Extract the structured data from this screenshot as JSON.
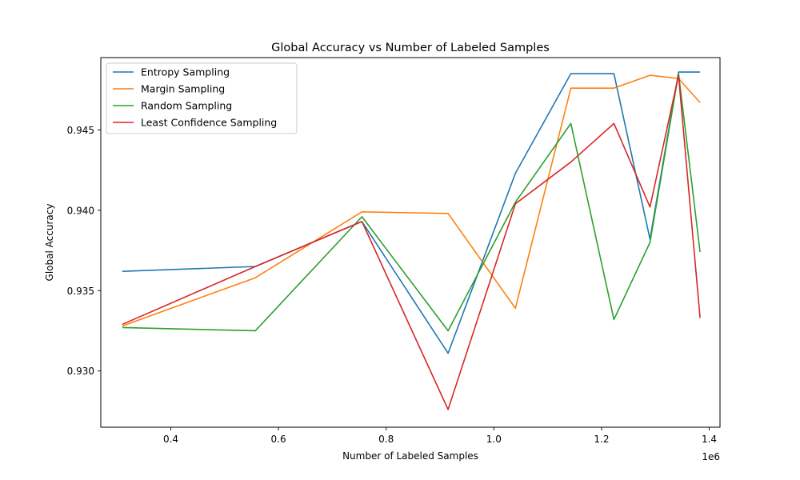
{
  "chart_data": {
    "type": "line",
    "title": "Global Accuracy vs Number of Labeled Samples",
    "xlabel": "Number of Labeled Samples",
    "ylabel": "Global Accuracy",
    "x_offset_label": "1e6",
    "xlim": [
      0.27,
      1.42
    ],
    "ylim": [
      0.9265,
      0.9495
    ],
    "x_ticks": [
      0.4,
      0.6,
      0.8,
      1.0,
      1.2,
      1.4
    ],
    "x_tick_labels": [
      "0.4",
      "0.6",
      "0.8",
      "1.0",
      "1.2",
      "1.4"
    ],
    "y_ticks": [
      0.93,
      0.935,
      0.94,
      0.945
    ],
    "y_tick_labels": [
      "0.930",
      "0.935",
      "0.940",
      "0.945"
    ],
    "grid": false,
    "legend_position": "top-left",
    "series": [
      {
        "name": "Entropy Sampling",
        "color": "#1f77b4",
        "x": [
          0.31,
          0.557,
          0.755,
          0.915,
          1.04,
          1.143,
          1.223,
          1.29,
          1.343,
          1.383
        ],
        "y": [
          0.9362,
          0.9365,
          0.9393,
          0.9311,
          0.9423,
          0.9485,
          0.9485,
          0.9382,
          0.9486,
          0.9486
        ]
      },
      {
        "name": "Margin Sampling",
        "color": "#ff7f0e",
        "x": [
          0.31,
          0.557,
          0.755,
          0.915,
          1.04,
          1.143,
          1.223,
          1.29,
          1.343,
          1.383
        ],
        "y": [
          0.9328,
          0.9358,
          0.9399,
          0.9398,
          0.9339,
          0.9476,
          0.9476,
          0.9484,
          0.9482,
          0.9467
        ]
      },
      {
        "name": "Random Sampling",
        "color": "#2ca02c",
        "x": [
          0.31,
          0.557,
          0.755,
          0.915,
          1.04,
          1.143,
          1.223,
          1.29,
          1.343,
          1.383
        ],
        "y": [
          0.9327,
          0.9325,
          0.9396,
          0.9325,
          0.9405,
          0.9454,
          0.9332,
          0.938,
          0.9485,
          0.9374
        ]
      },
      {
        "name": "Least Confidence Sampling",
        "color": "#d62728",
        "x": [
          0.31,
          0.557,
          0.755,
          0.915,
          1.04,
          1.143,
          1.223,
          1.29,
          1.343,
          1.383
        ],
        "y": [
          0.9329,
          0.9365,
          0.9393,
          0.9276,
          0.9404,
          0.943,
          0.9454,
          0.9402,
          0.9484,
          0.9333
        ]
      }
    ]
  }
}
